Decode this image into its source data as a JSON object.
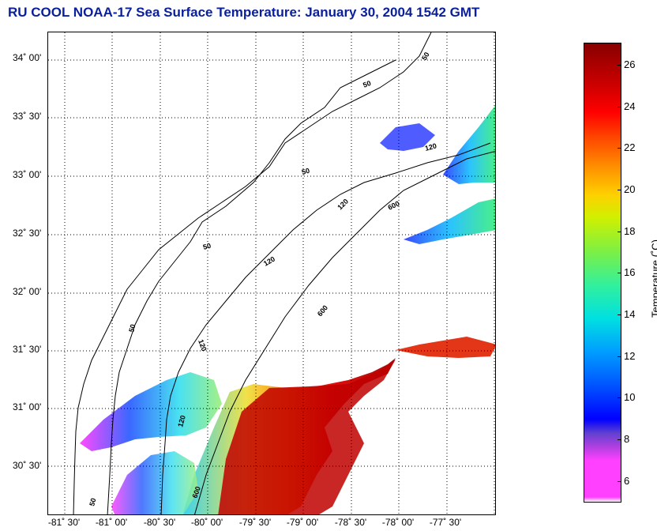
{
  "title": "RU COOL  NOAA-17  Sea Surface Temperature:  January 30, 2004 1542 GMT",
  "map": {
    "lat_ticks": [
      "34˚ 00'",
      "33˚ 30'",
      "33˚ 00'",
      "32˚ 30'",
      "32˚ 00'",
      "31˚ 30'",
      "31˚ 00'",
      "30˚ 30'"
    ],
    "lon_ticks": [
      "-81˚ 30'",
      "-81˚ 00'",
      "-80˚ 30'",
      "-80˚ 00'",
      "-79˚ 30'",
      "-79˚ 00'",
      "-78˚ 30'",
      "-78˚ 00'",
      "-77˚ 30'"
    ],
    "contour_labels": [
      "50",
      "50",
      "50",
      "50",
      "50",
      "50",
      "120",
      "120",
      "120",
      "120",
      "120",
      "600",
      "600",
      "600"
    ],
    "contour_depths_m": [
      50,
      120,
      600
    ]
  },
  "colorbar": {
    "label": "Temperature (˚C)",
    "ticks": [
      "26",
      "24",
      "22",
      "20",
      "18",
      "16",
      "14",
      "12",
      "10",
      "8",
      "6"
    ],
    "range_c": [
      5,
      27
    ],
    "colors": {
      "cold": "#ff40ff",
      "cool": "#0000ff",
      "mid": "#00e0e0",
      "warm": "#ffd000",
      "hot": "#ff0000",
      "hottest": "#880000"
    }
  }
}
